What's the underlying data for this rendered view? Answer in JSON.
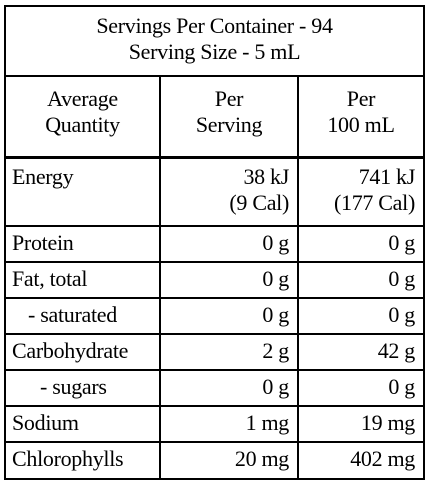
{
  "header": {
    "line1": "Servings Per Container - 94",
    "line2": "Serving Size - 5 mL"
  },
  "columns": {
    "col1_line1": "Average",
    "col1_line2": "Quantity",
    "col2_line1": "Per",
    "col2_line2": "Serving",
    "col3_line1": "Per",
    "col3_line2": "100 mL"
  },
  "energy": {
    "label": "Energy",
    "per_serving_kj": "38 kJ",
    "per_serving_cal": "(9 Cal)",
    "per_100_kj": "741 kJ",
    "per_100_cal": "(177 Cal)"
  },
  "rows": [
    {
      "label": "Protein",
      "per_serving": "0 g",
      "per_100": "0 g"
    },
    {
      "label": "Fat, total",
      "per_serving": "0 g",
      "per_100": "0 g"
    },
    {
      "label": "- saturated",
      "per_serving": "0 g",
      "per_100": "0 g"
    },
    {
      "label": "Carbohydrate",
      "per_serving": "2 g",
      "per_100": "42 g"
    },
    {
      "label": "- sugars",
      "per_serving": "0 g",
      "per_100": "0 g"
    },
    {
      "label": "Sodium",
      "per_serving": "1 mg",
      "per_100": "19 mg"
    },
    {
      "label": "Chlorophylls",
      "per_serving": "20 mg",
      "per_100": "402 mg"
    }
  ]
}
